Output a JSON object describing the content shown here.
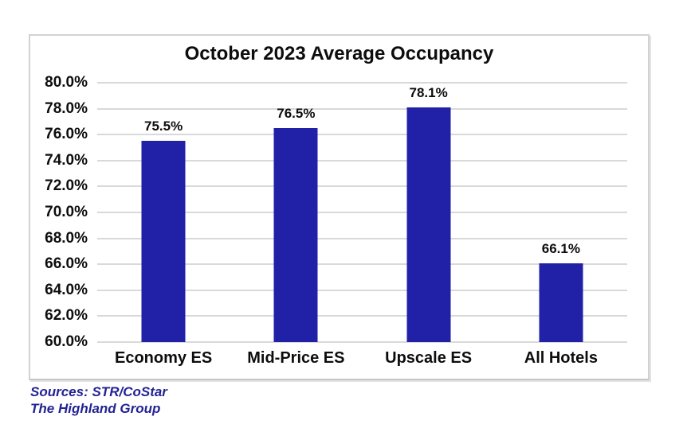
{
  "chart_data": {
    "type": "bar",
    "title": "October 2023 Average Occupancy",
    "categories": [
      "Economy ES",
      "Mid-Price ES",
      "Upscale ES",
      "All Hotels"
    ],
    "values": [
      75.5,
      76.5,
      78.1,
      66.1
    ],
    "value_labels": [
      "75.5%",
      "76.5%",
      "78.1%",
      "66.1%"
    ],
    "ylim": [
      60,
      80
    ],
    "yticks": [
      {
        "value": 80,
        "label": "80.0%"
      },
      {
        "value": 78,
        "label": "78.0%"
      },
      {
        "value": 76,
        "label": "76.0%"
      },
      {
        "value": 74,
        "label": "74.0%"
      },
      {
        "value": 72,
        "label": "72.0%"
      },
      {
        "value": 70,
        "label": "70.0%"
      },
      {
        "value": 68,
        "label": "68.0%"
      },
      {
        "value": 66,
        "label": "66.0%"
      },
      {
        "value": 64,
        "label": "64.0%"
      },
      {
        "value": 62,
        "label": "62.0%"
      },
      {
        "value": 60,
        "label": "60.0%"
      }
    ],
    "grid": true,
    "legend": "none",
    "bar_color": "#2121a8",
    "gridline_color": "#d9d9d9"
  },
  "footer": {
    "sources_line1": "Sources: STR/CoStar",
    "sources_line2": "The Highland Group",
    "color": "#232394"
  }
}
